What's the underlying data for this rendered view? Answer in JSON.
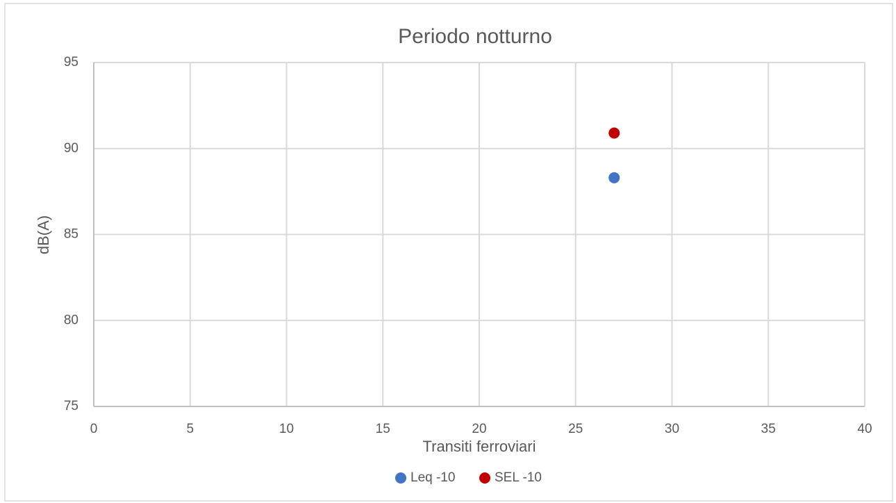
{
  "chart_data": {
    "type": "scatter",
    "title": "Periodo notturno",
    "xlabel": "Transiti ferroviari",
    "ylabel": "dB(A)",
    "series": [
      {
        "name": "Leq -10",
        "color": "#4472c4",
        "x": [
          27
        ],
        "values": [
          88.3
        ]
      },
      {
        "name": "SEL -10",
        "color": "#c00000",
        "x": [
          27
        ],
        "values": [
          90.9
        ]
      }
    ],
    "xlim": [
      0,
      40
    ],
    "xticks": [
      0,
      5,
      10,
      15,
      20,
      25,
      30,
      35,
      40
    ],
    "ylim": [
      75,
      95
    ],
    "yticks": [
      75,
      80,
      85,
      90,
      95
    ],
    "grid": true,
    "legend": "bottom"
  }
}
